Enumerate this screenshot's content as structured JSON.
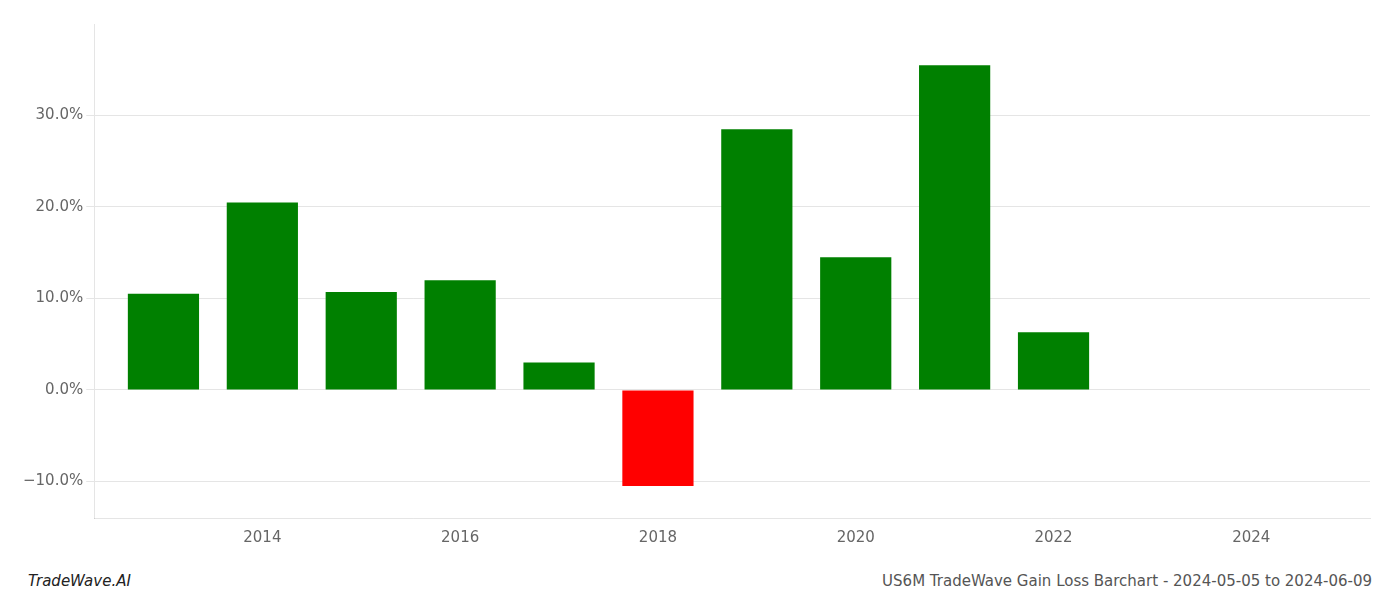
{
  "chart_data": {
    "type": "bar",
    "x": [
      2013,
      2014,
      2015,
      2016,
      2017,
      2018,
      2019,
      2020,
      2021,
      2022,
      2023
    ],
    "values": [
      10.5,
      20.5,
      10.7,
      12.0,
      3.0,
      -10.5,
      28.5,
      14.5,
      35.5,
      6.3,
      0.0
    ],
    "colors": [
      "#008000",
      "#008000",
      "#008000",
      "#008000",
      "#008000",
      "#ff0000",
      "#008000",
      "#008000",
      "#008000",
      "#008000",
      "#008000"
    ],
    "xlim": [
      2012.3,
      2025.2
    ],
    "xticks": [
      2014,
      2016,
      2018,
      2020,
      2022,
      2024
    ],
    "ylim": [
      -14.0,
      40.0
    ],
    "yticks": [
      {
        "value": -10.0,
        "label": "−10.0%"
      },
      {
        "value": 0.0,
        "label": "0.0%"
      },
      {
        "value": 10.0,
        "label": "10.0%"
      },
      {
        "value": 20.0,
        "label": "20.0%"
      },
      {
        "value": 30.0,
        "label": "30.0%"
      }
    ],
    "grid": true,
    "annotations": [
      "TradeWave.AI",
      "US6M TradeWave Gain Loss Barchart - 2024-05-05 to 2024-06-09"
    ]
  }
}
